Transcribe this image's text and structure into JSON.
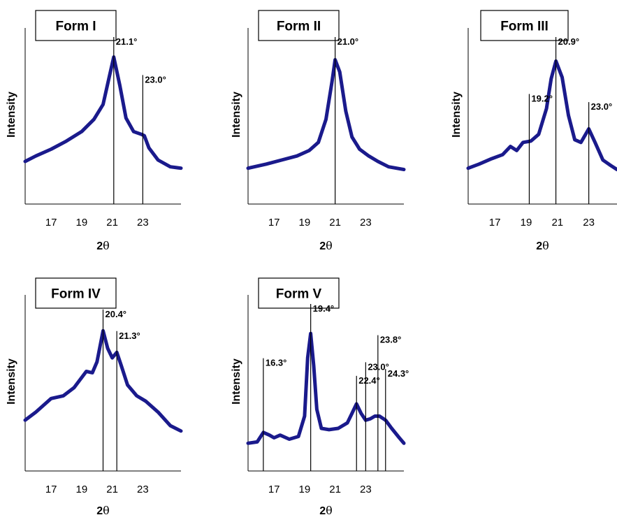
{
  "chart_data": [
    {
      "type": "line",
      "title": "Form I",
      "xlabel_prefix": "2",
      "xlabel_symbol": "θ",
      "ylabel": "Intensity",
      "xlim": [
        15.3,
        25.5
      ],
      "ylim": [
        0,
        100
      ],
      "xticks": [
        17,
        19,
        21,
        23
      ],
      "color": "#1a1a8c",
      "peaks": [
        {
          "x": 21.1,
          "label": "21.1°",
          "top": 100
        },
        {
          "x": 23.0,
          "label": "23.0°",
          "top": 72
        }
      ],
      "x": [
        15.3,
        16.0,
        17.0,
        18.0,
        19.0,
        19.8,
        20.4,
        20.8,
        21.1,
        21.5,
        21.9,
        22.4,
        22.9,
        23.1,
        23.4,
        24.0,
        24.8,
        25.5
      ],
      "y": [
        16,
        20,
        25,
        31,
        38,
        47,
        58,
        78,
        93,
        72,
        48,
        38,
        36,
        35,
        26,
        17,
        12,
        11
      ]
    },
    {
      "type": "line",
      "title": "Form II",
      "xlabel_prefix": "2",
      "xlabel_symbol": "θ",
      "ylabel": "Intensity",
      "xlim": [
        15.3,
        25.5
      ],
      "ylim": [
        0,
        100
      ],
      "xticks": [
        17,
        19,
        21,
        23
      ],
      "color": "#1a1a8c",
      "peaks": [
        {
          "x": 21.0,
          "label": "21.0°",
          "top": 100
        }
      ],
      "x": [
        15.3,
        16.5,
        17.5,
        18.5,
        19.3,
        19.9,
        20.4,
        20.8,
        21.0,
        21.3,
        21.7,
        22.1,
        22.6,
        23.2,
        23.8,
        24.5,
        25.5
      ],
      "y": [
        11,
        14,
        17,
        20,
        24,
        30,
        47,
        75,
        91,
        82,
        53,
        34,
        25,
        20,
        16,
        12,
        10
      ]
    },
    {
      "type": "line",
      "title": "Form III",
      "xlabel_prefix": "2",
      "xlabel_symbol": "θ",
      "ylabel": "Intensity",
      "xlim": [
        15.3,
        24.8
      ],
      "ylim": [
        0,
        100
      ],
      "xticks": [
        17,
        19,
        21,
        23
      ],
      "color": "#1a1a8c",
      "peaks": [
        {
          "x": 19.2,
          "label": "19.2°",
          "top": 58
        },
        {
          "x": 20.9,
          "label": "20.9°",
          "top": 100
        },
        {
          "x": 23.0,
          "label": "23.0°",
          "top": 52
        }
      ],
      "x": [
        15.3,
        16.0,
        16.8,
        17.5,
        18.0,
        18.4,
        18.8,
        19.3,
        19.8,
        20.3,
        20.6,
        20.9,
        21.3,
        21.7,
        22.1,
        22.5,
        23.0,
        23.4,
        23.9,
        24.4,
        24.8
      ],
      "y": [
        11,
        14,
        18,
        21,
        27,
        24,
        30,
        31,
        36,
        55,
        77,
        90,
        78,
        50,
        32,
        30,
        40,
        30,
        17,
        13,
        10
      ]
    },
    {
      "type": "line",
      "title": "Form IV",
      "xlabel_prefix": "2",
      "xlabel_symbol": "θ",
      "ylabel": "Intensity",
      "xlim": [
        15.3,
        25.5
      ],
      "ylim": [
        0,
        100
      ],
      "xticks": [
        17,
        19,
        21,
        23
      ],
      "color": "#1a1a8c",
      "peaks": [
        {
          "x": 20.4,
          "label": "20.4°",
          "top": 96
        },
        {
          "x": 21.3,
          "label": "21.3°",
          "top": 80
        }
      ],
      "x": [
        15.3,
        16.0,
        17.0,
        17.8,
        18.5,
        19.3,
        19.7,
        20.0,
        20.4,
        20.7,
        21.0,
        21.3,
        21.6,
        22.0,
        22.6,
        23.2,
        24.0,
        24.8,
        25.5
      ],
      "y": [
        22,
        28,
        38,
        40,
        46,
        58,
        57,
        65,
        88,
        75,
        68,
        72,
        62,
        48,
        40,
        36,
        28,
        18,
        14
      ]
    },
    {
      "type": "line",
      "title": "Form V",
      "xlabel_prefix": "2",
      "xlabel_symbol": "θ",
      "ylabel": "Intensity",
      "xlim": [
        15.3,
        25.5
      ],
      "ylim": [
        0,
        100
      ],
      "xticks": [
        17,
        19,
        21,
        23
      ],
      "color": "#1a1a8c",
      "peaks": [
        {
          "x": 16.3,
          "label": "16.3°",
          "top": 60
        },
        {
          "x": 19.4,
          "label": "19.4°",
          "top": 100
        },
        {
          "x": 22.4,
          "label": "22.4°",
          "top": 47
        },
        {
          "x": 23.0,
          "label": "23.0°",
          "top": 57
        },
        {
          "x": 23.8,
          "label": "23.8°",
          "top": 77
        },
        {
          "x": 24.3,
          "label": "24.3°",
          "top": 52
        }
      ],
      "x": [
        15.3,
        15.9,
        16.3,
        16.7,
        17.0,
        17.4,
        18.0,
        18.6,
        19.0,
        19.2,
        19.4,
        19.6,
        19.8,
        20.1,
        20.6,
        21.2,
        21.8,
        22.1,
        22.4,
        22.7,
        23.0,
        23.3,
        23.6,
        23.9,
        24.3,
        24.7,
        25.2,
        25.5
      ],
      "y": [
        5,
        6,
        13,
        11,
        9,
        11,
        8,
        10,
        25,
        68,
        86,
        62,
        30,
        16,
        15,
        16,
        20,
        27,
        34,
        27,
        22,
        23,
        25,
        25,
        22,
        16,
        9,
        5
      ]
    }
  ]
}
